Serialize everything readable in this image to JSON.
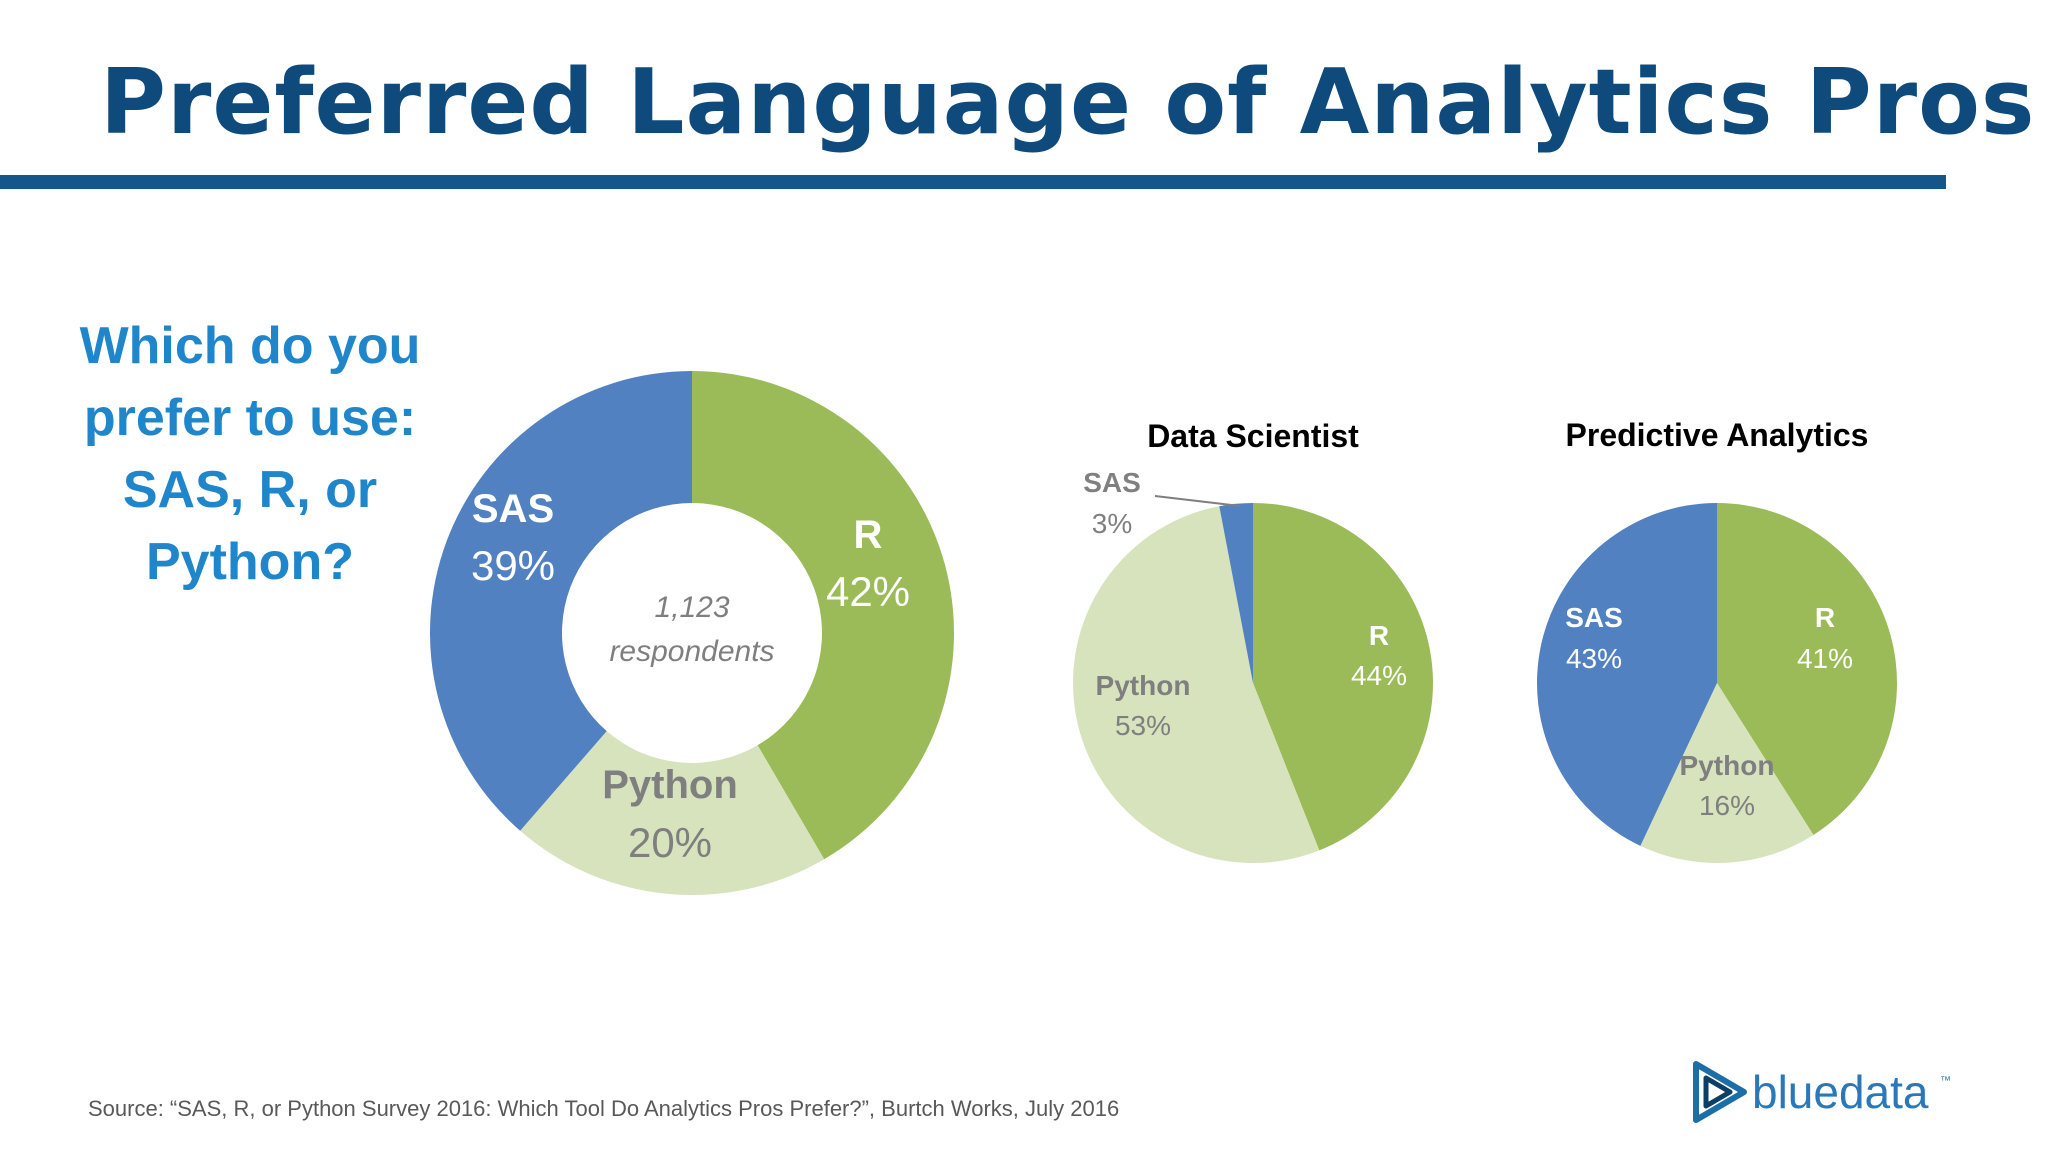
{
  "title": "Preferred Language of Analytics Pros",
  "question": "Which do you prefer to use: SAS, R, or Python?",
  "source": "Source: “SAS, R, or Python Survey 2016: Which Tool Do Analytics Pros Prefer?”, Burtch Works, July 2016",
  "logo": {
    "text": "bluedata",
    "trademark": "™"
  },
  "colors": {
    "title": "#0e4a7b",
    "rule": "#14568a",
    "question": "#1f86cc",
    "sas": "#5181c0",
    "r": "#9bbb59",
    "python": "#d7e3bd"
  },
  "chart_data": [
    {
      "type": "pie",
      "variant": "donut",
      "title": "",
      "center_label": [
        "1,123",
        "respondents"
      ],
      "labels": [
        "R",
        "Python",
        "SAS"
      ],
      "values": [
        42,
        20,
        39
      ],
      "value_labels": [
        "42%",
        "20%",
        "39%"
      ]
    },
    {
      "type": "pie",
      "title": "Data Scientist",
      "labels": [
        "R",
        "Python",
        "SAS"
      ],
      "values": [
        44,
        53,
        3
      ],
      "value_labels": [
        "44%",
        "53%",
        "3%"
      ]
    },
    {
      "type": "pie",
      "title": "Predictive Analytics",
      "labels": [
        "R",
        "Python",
        "SAS"
      ],
      "values": [
        41,
        16,
        43
      ],
      "value_labels": [
        "41%",
        "16%",
        "43%"
      ]
    }
  ]
}
